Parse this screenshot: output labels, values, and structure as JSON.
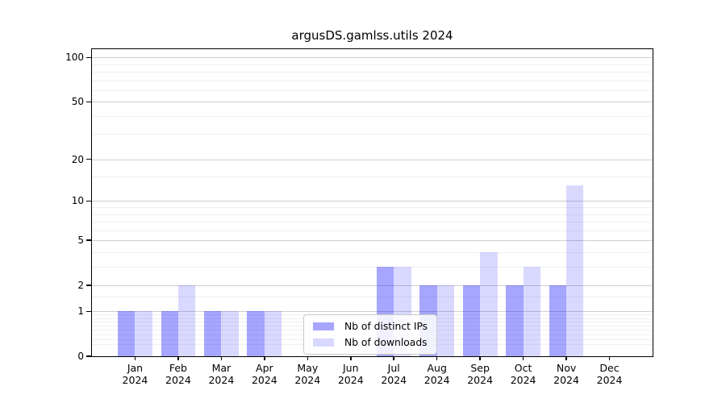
{
  "chart_data": {
    "type": "bar",
    "title": "argusDS.gamlss.utils 2024",
    "categories": [
      "Jan",
      "Feb",
      "Mar",
      "Apr",
      "May",
      "Jun",
      "Jul",
      "Aug",
      "Sep",
      "Oct",
      "Nov",
      "Dec"
    ],
    "year_label": "2024",
    "series": [
      {
        "name": "Nb of distinct IPs",
        "color": "rgba(0,0,255,0.35)",
        "color_hex_on_white": "#a6a6ff",
        "values": [
          1,
          1,
          1,
          1,
          0,
          0,
          3,
          2,
          2,
          2,
          2,
          0
        ]
      },
      {
        "name": "Nb of downloads",
        "color": "rgba(0,0,255,0.15)",
        "color_hex_on_white": "#d9d9ff",
        "values": [
          1,
          2,
          1,
          1,
          0,
          0,
          3,
          2,
          4,
          3,
          13,
          0
        ]
      }
    ],
    "xlabel": "",
    "ylabel": "",
    "yscale": "log1p",
    "ylim": [
      0,
      114
    ],
    "yticks": [
      0,
      1,
      2,
      5,
      10,
      20,
      50,
      100
    ],
    "minor_gridlines": [
      0.2,
      0.3,
      0.4,
      0.5,
      0.6,
      0.7,
      0.8,
      0.9,
      1.5,
      3,
      4,
      6,
      7,
      8,
      9,
      15,
      30,
      40,
      60,
      70,
      80,
      90
    ],
    "grid": "on",
    "legend": {
      "position": "inside-bottom-center",
      "entries": [
        "Nb of distinct IPs",
        "Nb of downloads"
      ]
    },
    "colors": {
      "grid_major": "#cfcfcf",
      "grid_minor": "#f0f0f0",
      "axis": "#000000",
      "legend_border": "#c9c9c9"
    }
  }
}
